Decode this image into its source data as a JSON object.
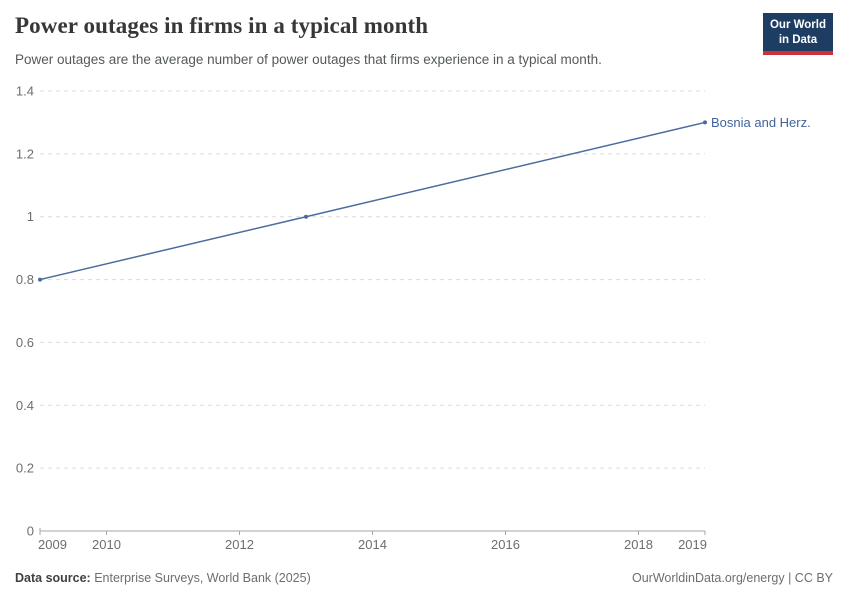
{
  "header": {
    "title": "Power outages in firms in a typical month",
    "subtitle": "Power outages are the average number of power outages that firms experience in a typical month."
  },
  "logo": {
    "line1": "Our World",
    "line2": "in Data",
    "bg_color": "#1d3d63",
    "accent_color": "#cf3139"
  },
  "chart_data": {
    "type": "line",
    "title": "Power outages in firms in a typical month",
    "subtitle": "Power outages are the average number of power outages that firms experience in a typical month.",
    "xlabel": "",
    "ylabel": "",
    "xlim": [
      2009,
      2019
    ],
    "ylim": [
      0,
      1.4
    ],
    "x_ticks": [
      2009,
      2010,
      2012,
      2014,
      2016,
      2018,
      2019
    ],
    "y_ticks": [
      0,
      0.2,
      0.4,
      0.6,
      0.8,
      1,
      1.2,
      1.4
    ],
    "grid": "horizontal-dashed",
    "legend_position": "end-of-line",
    "series": [
      {
        "name": "Bosnia and Herz.",
        "color": "#4c6a9c",
        "label_color": "#41639c",
        "points": [
          {
            "x": 2009,
            "y": 0.8
          },
          {
            "x": 2013,
            "y": 1.0
          },
          {
            "x": 2019,
            "y": 1.3
          }
        ]
      }
    ]
  },
  "footer": {
    "source_label": "Data source:",
    "source_value": "Enterprise Surveys, World Bank (2025)",
    "right_text": "OurWorldinData.org/energy | CC BY"
  }
}
